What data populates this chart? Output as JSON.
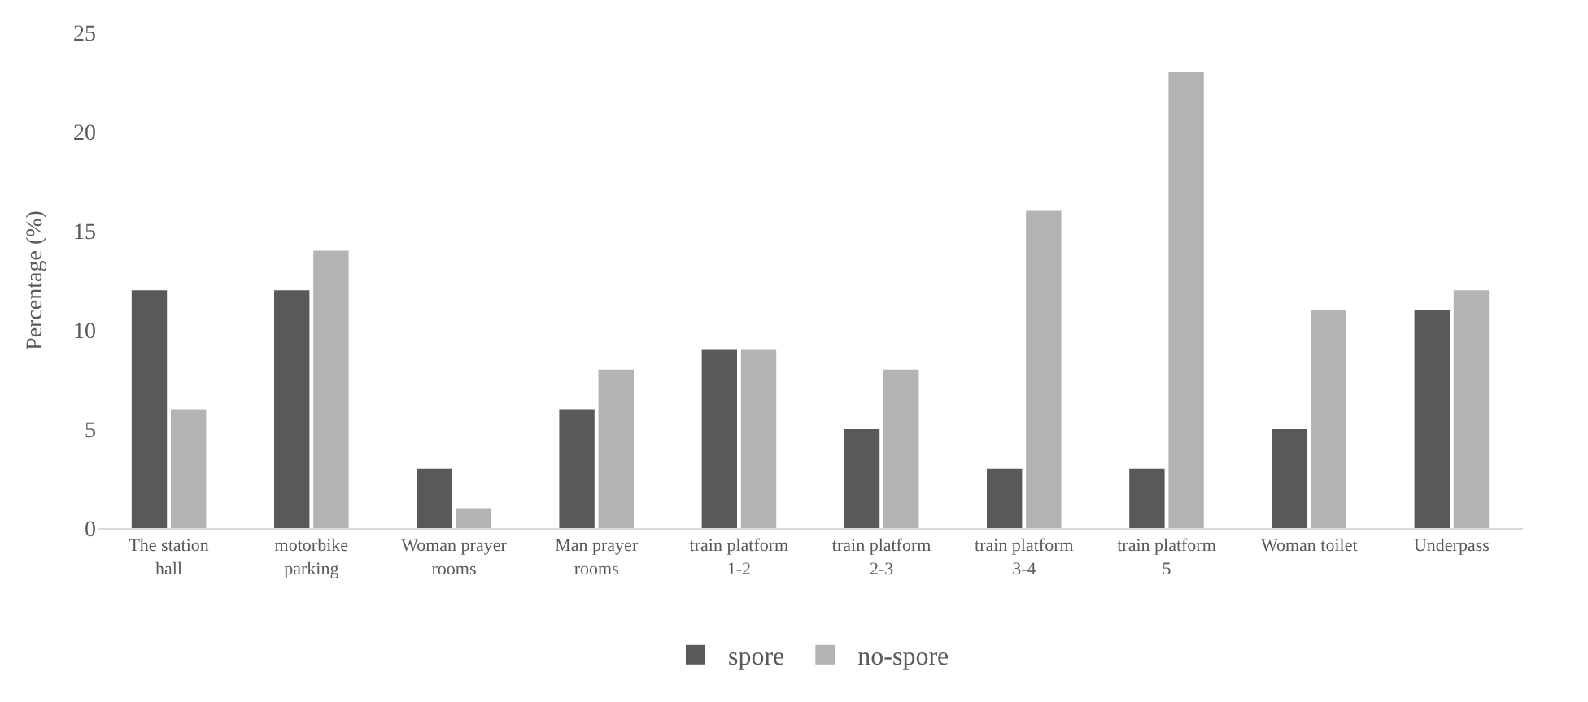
{
  "chart_data": {
    "type": "bar",
    "ylabel": "Percentage (%)",
    "categories": [
      "The station hall",
      "motorbike parking",
      "Woman prayer rooms",
      "Man prayer rooms",
      "train platform 1-2",
      "train platform 2-3",
      "train platform 3-4",
      "train platform 5",
      "Woman toilet",
      "Underpass"
    ],
    "series": [
      {
        "name": "spore",
        "color": "#595959",
        "values": [
          12,
          12,
          3,
          6,
          9,
          5,
          3,
          3,
          5,
          11
        ]
      },
      {
        "name": "no-spore",
        "color": "#b3b3b3",
        "values": [
          6,
          14,
          1,
          8,
          9,
          8,
          16,
          23,
          11,
          12
        ]
      }
    ],
    "ylim": [
      0,
      25
    ],
    "yticks": [
      0,
      5,
      10,
      15,
      20,
      25
    ],
    "grid": false,
    "legend": "bottom"
  }
}
